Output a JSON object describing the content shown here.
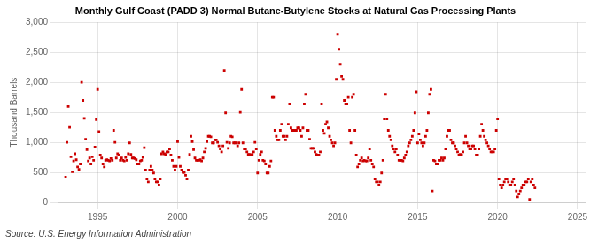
{
  "chart_data": {
    "type": "scatter",
    "title": "Monthly Gulf Coast (PADD 3) Normal Butane-Butylene Stocks at Natural Gas Processing Plants",
    "ylabel": "Thousand Barrels",
    "source": "Source: U.S. Energy Information Administration",
    "color": "#cc0000",
    "marker": "square",
    "grid": true,
    "xlim": [
      1992.5,
      2025.5
    ],
    "ylim": [
      0,
      3000
    ],
    "xticks": [
      1995,
      2000,
      2005,
      2010,
      2015,
      2020,
      2025
    ],
    "yticks": [
      0,
      500,
      {
        "value": 1000,
        "label": "1,000"
      },
      {
        "value": 1500,
        "label": "1,500"
      },
      {
        "value": 2000,
        "label": "2,000"
      },
      {
        "value": 2500,
        "label": "2,500"
      },
      {
        "value": 3000,
        "label": "3,000"
      }
    ],
    "x": [
      1993.0,
      1993.083,
      1993.167,
      1993.25,
      1993.333,
      1993.417,
      1993.5,
      1993.583,
      1993.667,
      1993.75,
      1993.833,
      1993.917,
      1994.0,
      1994.083,
      1994.167,
      1994.25,
      1994.333,
      1994.417,
      1994.5,
      1994.583,
      1994.667,
      1994.75,
      1994.833,
      1994.917,
      1995.0,
      1995.083,
      1995.167,
      1995.25,
      1995.333,
      1995.417,
      1995.5,
      1995.583,
      1995.667,
      1995.75,
      1995.833,
      1995.917,
      1996.0,
      1996.083,
      1996.167,
      1996.25,
      1996.333,
      1996.417,
      1996.5,
      1996.583,
      1996.667,
      1996.75,
      1996.833,
      1996.917,
      1997.0,
      1997.083,
      1997.167,
      1997.25,
      1997.333,
      1997.417,
      1997.5,
      1997.583,
      1997.667,
      1997.75,
      1997.833,
      1997.917,
      1998.0,
      1998.083,
      1998.167,
      1998.25,
      1998.333,
      1998.417,
      1998.5,
      1998.583,
      1998.667,
      1998.75,
      1998.833,
      1998.917,
      1999.0,
      1999.083,
      1999.167,
      1999.25,
      1999.333,
      1999.417,
      1999.5,
      1999.583,
      1999.667,
      1999.75,
      1999.833,
      1999.917,
      2000.0,
      2000.083,
      2000.167,
      2000.25,
      2000.333,
      2000.417,
      2000.5,
      2000.583,
      2000.667,
      2000.75,
      2000.833,
      2000.917,
      2001.0,
      2001.083,
      2001.167,
      2001.25,
      2001.333,
      2001.417,
      2001.5,
      2001.583,
      2001.667,
      2001.75,
      2001.833,
      2001.917,
      2002.0,
      2002.083,
      2002.167,
      2002.25,
      2002.333,
      2002.417,
      2002.5,
      2002.583,
      2002.667,
      2002.75,
      2002.833,
      2002.917,
      2003.0,
      2003.083,
      2003.167,
      2003.25,
      2003.333,
      2003.417,
      2003.5,
      2003.583,
      2003.667,
      2003.75,
      2003.833,
      2003.917,
      2004.0,
      2004.083,
      2004.167,
      2004.25,
      2004.333,
      2004.417,
      2004.5,
      2004.583,
      2004.667,
      2004.75,
      2004.833,
      2004.917,
      2005.0,
      2005.083,
      2005.167,
      2005.25,
      2005.333,
      2005.417,
      2005.5,
      2005.583,
      2005.667,
      2005.75,
      2005.833,
      2005.917,
      2006.0,
      2006.083,
      2006.167,
      2006.25,
      2006.333,
      2006.417,
      2006.5,
      2006.583,
      2006.667,
      2006.75,
      2006.833,
      2006.917,
      2007.0,
      2007.083,
      2007.167,
      2007.25,
      2007.333,
      2007.417,
      2007.5,
      2007.583,
      2007.667,
      2007.75,
      2007.833,
      2007.917,
      2008.0,
      2008.083,
      2008.167,
      2008.25,
      2008.333,
      2008.417,
      2008.5,
      2008.583,
      2008.667,
      2008.75,
      2008.833,
      2008.917,
      2009.0,
      2009.083,
      2009.167,
      2009.25,
      2009.333,
      2009.417,
      2009.5,
      2009.583,
      2009.667,
      2009.75,
      2009.833,
      2009.917,
      2010.0,
      2010.083,
      2010.167,
      2010.25,
      2010.333,
      2010.417,
      2010.5,
      2010.583,
      2010.667,
      2010.75,
      2010.833,
      2010.917,
      2011.0,
      2011.083,
      2011.167,
      2011.25,
      2011.333,
      2011.417,
      2011.5,
      2011.583,
      2011.667,
      2011.75,
      2011.833,
      2011.917,
      2012.0,
      2012.083,
      2012.167,
      2012.25,
      2012.333,
      2012.417,
      2012.5,
      2012.583,
      2012.667,
      2012.75,
      2012.833,
      2012.917,
      2013.0,
      2013.083,
      2013.167,
      2013.25,
      2013.333,
      2013.417,
      2013.5,
      2013.583,
      2013.667,
      2013.75,
      2013.833,
      2013.917,
      2014.0,
      2014.083,
      2014.167,
      2014.25,
      2014.333,
      2014.417,
      2014.5,
      2014.583,
      2014.667,
      2014.75,
      2014.833,
      2014.917,
      2015.0,
      2015.083,
      2015.167,
      2015.25,
      2015.333,
      2015.417,
      2015.5,
      2015.583,
      2015.667,
      2015.75,
      2015.833,
      2015.917,
      2016.0,
      2016.083,
      2016.167,
      2016.25,
      2016.333,
      2016.417,
      2016.5,
      2016.583,
      2016.667,
      2016.75,
      2016.833,
      2016.917,
      2017.0,
      2017.083,
      2017.167,
      2017.25,
      2017.333,
      2017.417,
      2017.5,
      2017.583,
      2017.667,
      2017.75,
      2017.833,
      2017.917,
      2018.0,
      2018.083,
      2018.167,
      2018.25,
      2018.333,
      2018.417,
      2018.5,
      2018.583,
      2018.667,
      2018.75,
      2018.833,
      2018.917,
      2019.0,
      2019.083,
      2019.167,
      2019.25,
      2019.333,
      2019.417,
      2019.5,
      2019.583,
      2019.667,
      2019.75,
      2019.833,
      2019.917,
      2020.0,
      2020.083,
      2020.167,
      2020.25,
      2020.333,
      2020.417,
      2020.5,
      2020.583,
      2020.667,
      2020.75,
      2020.833,
      2020.917,
      2021.0,
      2021.083,
      2021.167,
      2021.25,
      2021.333,
      2021.417,
      2021.5,
      2021.583,
      2021.667,
      2021.75,
      2021.833,
      2021.917,
      2022.0,
      2022.083,
      2022.167,
      2022.25,
      2022.333
    ],
    "values": [
      420,
      1000,
      1600,
      1250,
      760,
      510,
      690,
      810,
      710,
      590,
      550,
      640,
      2000,
      1700,
      1400,
      1050,
      880,
      690,
      740,
      640,
      760,
      700,
      920,
      1380,
      1880,
      1180,
      790,
      740,
      640,
      590,
      700,
      710,
      700,
      690,
      730,
      700,
      1200,
      1000,
      740,
      810,
      790,
      700,
      740,
      700,
      690,
      750,
      700,
      810,
      990,
      800,
      740,
      740,
      730,
      710,
      640,
      640,
      690,
      700,
      750,
      910,
      540,
      390,
      340,
      540,
      600,
      540,
      490,
      390,
      340,
      340,
      290,
      390,
      810,
      840,
      810,
      800,
      840,
      840,
      890,
      790,
      700,
      600,
      540,
      600,
      1010,
      750,
      600,
      540,
      500,
      500,
      450,
      390,
      540,
      800,
      1100,
      1010,
      880,
      740,
      700,
      700,
      700,
      710,
      690,
      740,
      840,
      900,
      1010,
      1100,
      1100,
      1090,
      990,
      990,
      1040,
      1040,
      1000,
      940,
      890,
      840,
      940,
      2200,
      1490,
      1000,
      900,
      990,
      1100,
      1090,
      990,
      990,
      990,
      940,
      990,
      1500,
      1880,
      990,
      890,
      890,
      840,
      800,
      800,
      790,
      800,
      840,
      1000,
      890,
      490,
      700,
      800,
      840,
      700,
      690,
      640,
      490,
      490,
      600,
      690,
      1750,
      1750,
      1200,
      1100,
      1040,
      1040,
      1200,
      1300,
      1100,
      1100,
      1040,
      1100,
      1300,
      1640,
      1240,
      1200,
      1200,
      1200,
      1200,
      1240,
      1240,
      1200,
      1100,
      1240,
      1640,
      1800,
      1200,
      1200,
      1050,
      900,
      900,
      900,
      840,
      800,
      790,
      790,
      840,
      1640,
      1200,
      1150,
      1300,
      1340,
      1240,
      1100,
      1040,
      990,
      940,
      990,
      2050,
      2800,
      2550,
      2300,
      2100,
      2050,
      1700,
      1640,
      1640,
      1750,
      1200,
      990,
      1750,
      1800,
      1200,
      790,
      590,
      640,
      700,
      740,
      690,
      700,
      690,
      690,
      740,
      890,
      700,
      640,
      590,
      390,
      340,
      340,
      290,
      340,
      490,
      700,
      1390,
      1800,
      1390,
      1200,
      1100,
      1040,
      940,
      890,
      840,
      890,
      790,
      700,
      700,
      700,
      690,
      740,
      790,
      840,
      940,
      990,
      1040,
      1100,
      1200,
      1490,
      1840,
      990,
      1140,
      1040,
      990,
      940,
      990,
      1100,
      1200,
      1490,
      1800,
      1880,
      190,
      700,
      690,
      640,
      640,
      700,
      700,
      740,
      700,
      740,
      890,
      1100,
      1200,
      1200,
      1040,
      990,
      990,
      940,
      890,
      840,
      790,
      800,
      790,
      840,
      990,
      1100,
      990,
      940,
      890,
      890,
      940,
      940,
      890,
      790,
      790,
      890,
      1100,
      1300,
      1200,
      1100,
      1040,
      990,
      940,
      890,
      840,
      840,
      840,
      890,
      1200,
      1390,
      390,
      290,
      240,
      290,
      340,
      390,
      390,
      340,
      290,
      290,
      340,
      390,
      290,
      190,
      90,
      140,
      190,
      240,
      290,
      290,
      340,
      340,
      390,
      50,
      340,
      390,
      290,
      240
    ]
  }
}
